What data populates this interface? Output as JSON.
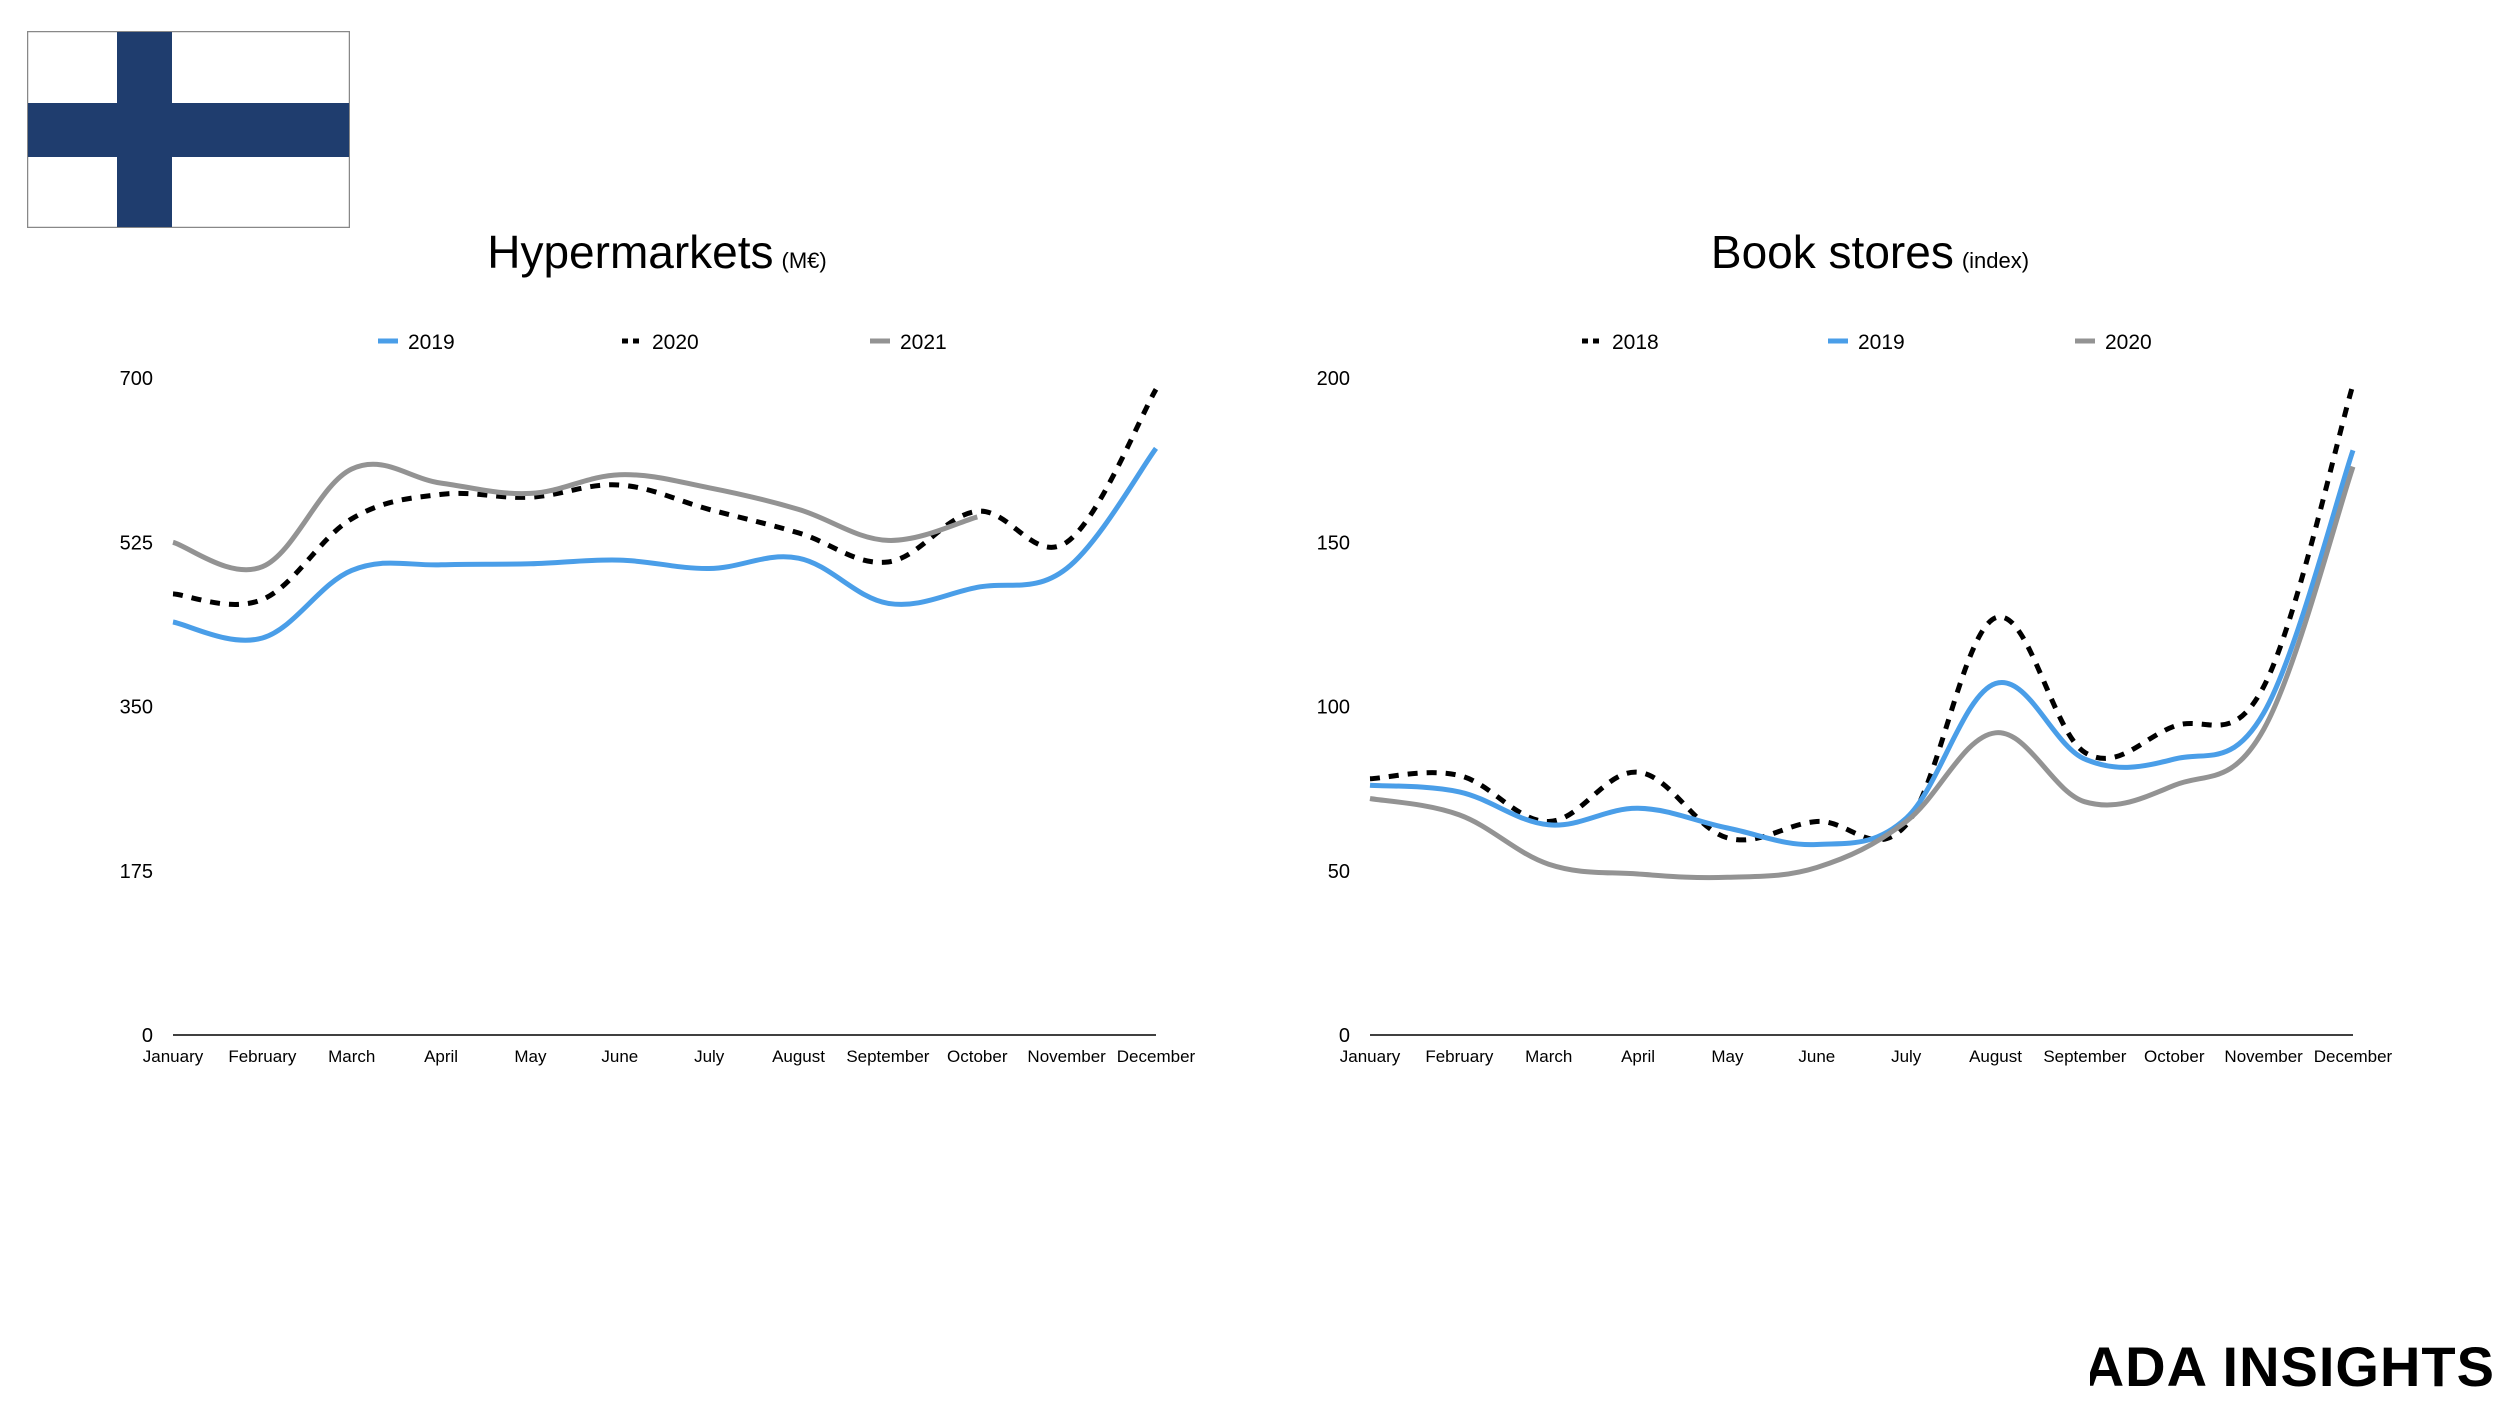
{
  "flag": {
    "icon": "finland-flag-icon",
    "colors": {
      "field": "#ffffff",
      "cross": "#1f3d6e",
      "border": "#888888"
    }
  },
  "brand": {
    "label": "ADA INSIGHTS"
  },
  "chart_data": [
    {
      "type": "line",
      "title": "Hypermarkets",
      "subtitle": "(M€)",
      "categories": [
        "January",
        "February",
        "March",
        "April",
        "May",
        "June",
        "July",
        "August",
        "September",
        "October",
        "November",
        "December"
      ],
      "yticks": [
        "0",
        "175",
        "350",
        "525",
        "700"
      ],
      "ylim": [
        0,
        700
      ],
      "grid": false,
      "legend_position": "top",
      "series": [
        {
          "name": "2019",
          "color": "#4a9ee8",
          "dash": "solid",
          "values": [
            440,
            423,
            495,
            501,
            502,
            506,
            497,
            508,
            460,
            477,
            497,
            625
          ]
        },
        {
          "name": "2020",
          "color": "#000000",
          "dash": "dashed",
          "values": [
            470,
            464,
            550,
            576,
            573,
            586,
            560,
            535,
            504,
            558,
            525,
            688
          ]
        },
        {
          "name": "2021",
          "color": "#939393",
          "dash": "solid",
          "values": [
            525,
            499,
            603,
            588,
            577,
            597,
            583,
            560,
            527,
            552,
            null,
            null
          ]
        }
      ]
    },
    {
      "type": "line",
      "title": "Book stores",
      "subtitle": "(index)",
      "categories": [
        "January",
        "February",
        "March",
        "April",
        "May",
        "June",
        "July",
        "August",
        "September",
        "October",
        "November",
        "December"
      ],
      "yticks": [
        "0",
        "50",
        "100",
        "150",
        "200"
      ],
      "ylim": [
        0,
        200
      ],
      "grid": false,
      "legend_position": "top",
      "series": [
        {
          "name": "2018",
          "color": "#000000",
          "dash": "dashed",
          "values": [
            78,
            79,
            65,
            80,
            60,
            65,
            64,
            127,
            86,
            94,
            106,
            198
          ]
        },
        {
          "name": "2019",
          "color": "#4a9ee8",
          "dash": "solid",
          "values": [
            76,
            74,
            64,
            69,
            63,
            58,
            66,
            107,
            84,
            84,
            98,
            178
          ]
        },
        {
          "name": "2020",
          "color": "#939393",
          "dash": "solid",
          "values": [
            72,
            67,
            52,
            49,
            48,
            51,
            65,
            92,
            71,
            76,
            93,
            173
          ]
        }
      ]
    }
  ]
}
